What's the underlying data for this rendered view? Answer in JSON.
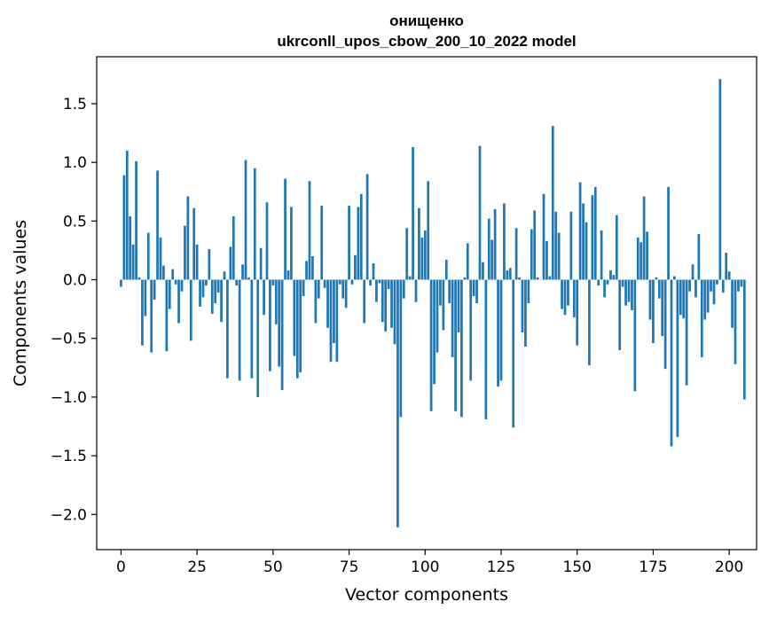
{
  "chart_data": {
    "type": "bar",
    "title_line1": "онищенко",
    "title_line2": "ukrconll_upos_cbow_200_10_2022 model",
    "xlabel": "Vector components",
    "ylabel": "Components values",
    "xlim": [
      -8,
      209
    ],
    "ylim": [
      -2.3,
      1.9
    ],
    "xticks": [
      0,
      25,
      50,
      75,
      100,
      125,
      150,
      175,
      200
    ],
    "yticks": [
      -2.0,
      -1.5,
      -1.0,
      -0.5,
      0.0,
      0.5,
      1.0,
      1.5
    ],
    "ytick_labels": [
      "−2.0",
      "−1.5",
      "−1.0",
      "−0.5",
      "0.0",
      "0.5",
      "1.0",
      "1.5"
    ],
    "bar_color": "#1f77b4",
    "grid": false,
    "values": [
      -0.06,
      0.89,
      1.1,
      0.54,
      0.3,
      1.01,
      0.02,
      -0.56,
      -0.31,
      0.4,
      -0.62,
      -0.17,
      0.93,
      0.36,
      0.12,
      -0.61,
      -0.25,
      0.09,
      -0.04,
      -0.37,
      -0.1,
      0.46,
      0.71,
      -0.52,
      0.61,
      0.3,
      -0.23,
      -0.15,
      -0.05,
      0.26,
      -0.29,
      -0.2,
      -0.11,
      -0.36,
      0.07,
      -0.84,
      0.28,
      0.54,
      -0.05,
      -0.86,
      0.13,
      1.02,
      0.02,
      -0.84,
      0.95,
      -1.0,
      0.27,
      -0.3,
      0.66,
      -0.78,
      -0.05,
      -0.38,
      -0.74,
      -0.94,
      0.86,
      0.08,
      0.62,
      -0.65,
      -0.84,
      -0.79,
      -0.14,
      0.16,
      0.84,
      0.2,
      -0.37,
      -0.16,
      0.63,
      -0.07,
      -0.41,
      -0.7,
      -0.54,
      -0.7,
      -0.04,
      -0.16,
      -0.24,
      0.63,
      -0.04,
      0.21,
      0.62,
      0.73,
      -0.37,
      0.9,
      -0.05,
      0.14,
      -0.19,
      -0.03,
      -0.36,
      -0.44,
      -0.08,
      -0.41,
      -0.55,
      -2.11,
      -1.17,
      -0.16,
      0.44,
      0.03,
      1.13,
      -0.19,
      0.61,
      0.36,
      0.42,
      0.84,
      -1.12,
      -0.89,
      -0.62,
      -0.22,
      -0.43,
      0.17,
      -0.2,
      -0.66,
      -1.12,
      -0.45,
      -1.17,
      0.02,
      0.31,
      -0.86,
      -0.14,
      -0.2,
      1.14,
      0.15,
      -1.19,
      0.52,
      0.34,
      0.6,
      -0.91,
      -0.86,
      0.65,
      0.08,
      0.1,
      -1.26,
      0.44,
      0.02,
      -0.45,
      -0.57,
      -0.2,
      0.43,
      0.59,
      0.02,
      0.0,
      0.73,
      0.33,
      0.03,
      1.31,
      0.58,
      0.4,
      -0.25,
      -0.3,
      -0.22,
      0.58,
      -0.32,
      -0.56,
      0.83,
      0.65,
      0.49,
      -0.73,
      0.72,
      0.79,
      -0.05,
      0.42,
      -0.15,
      -0.04,
      0.08,
      0.04,
      0.55,
      -0.6,
      -0.06,
      -0.22,
      -0.19,
      -0.26,
      -0.95,
      0.36,
      0.32,
      0.71,
      0.41,
      -0.34,
      -0.54,
      0.02,
      -0.16,
      -0.48,
      -0.76,
      0.79,
      -1.42,
      0.03,
      -1.34,
      -0.3,
      -0.33,
      -0.9,
      -0.1,
      0.13,
      -0.15,
      0.39,
      -0.66,
      -0.34,
      -0.28,
      -0.1,
      -0.21,
      -0.04,
      1.71,
      -0.11,
      0.23,
      0.07,
      -0.41,
      -0.72,
      -0.1,
      -0.06,
      -1.02
    ]
  }
}
